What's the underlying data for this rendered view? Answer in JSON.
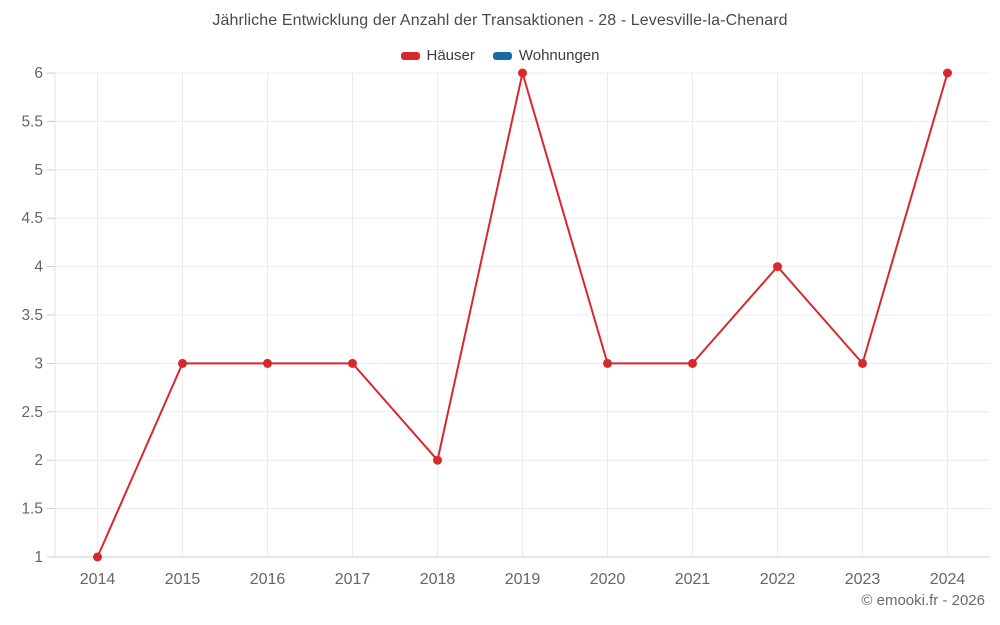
{
  "title": "Jährliche Entwicklung der Anzahl der Transaktionen - 28 - Levesville-la-Chenard",
  "legend": {
    "items": [
      {
        "id": "hauser",
        "label": "Häuser",
        "color": "#d7282c"
      },
      {
        "id": "wohnungen",
        "label": "Wohnungen",
        "color": "#1a6da2"
      }
    ]
  },
  "footer": {
    "copyright": "© emooki.fr - 2026"
  },
  "colors": {
    "grid": "#ececec",
    "axis_line": "#cccccc",
    "left_axis_line": "#e2e2e2",
    "tick": "#cccccc",
    "tick_label": "#666666",
    "title_text": "#4a4a4a"
  },
  "chart_data": {
    "type": "line",
    "title": "Jährliche Entwicklung der Anzahl der Transaktionen - 28 - Levesville-la-Chenard",
    "categories": [
      "2014",
      "2015",
      "2016",
      "2017",
      "2018",
      "2019",
      "2020",
      "2021",
      "2022",
      "2023",
      "2024"
    ],
    "series": [
      {
        "name": "Häuser",
        "color": "#d7282c",
        "visible": true,
        "values": [
          1,
          3,
          3,
          3,
          2,
          6,
          3,
          3,
          4,
          3,
          6
        ]
      },
      {
        "name": "Wohnungen",
        "color": "#1a6da2",
        "visible": false,
        "values": []
      }
    ],
    "xlabel": "",
    "ylabel": "",
    "ylim": [
      1,
      6
    ],
    "ytick_step": 0.5,
    "yticks": [
      "1",
      "1.5",
      "2",
      "2.5",
      "3",
      "3.5",
      "4",
      "4.5",
      "5",
      "5.5",
      "6"
    ],
    "grid": true,
    "legend_position": "top",
    "marker": "circle",
    "marker_radius": 4.5,
    "line_width": 2
  }
}
